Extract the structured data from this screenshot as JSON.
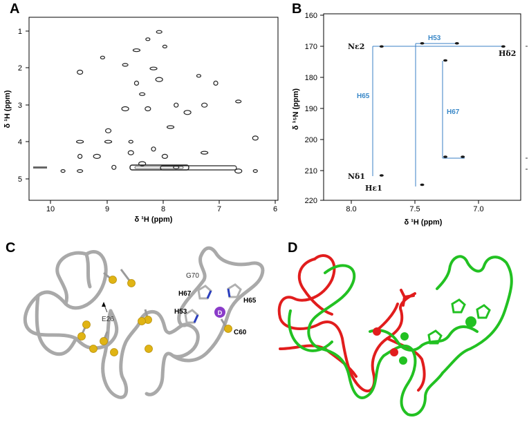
{
  "panels": {
    "a": {
      "letter": "A",
      "xlabel": "δ ¹H (ppm)",
      "ylabel": "δ ¹H (ppm)",
      "xticks": [
        "10",
        "9",
        "8",
        "7",
        "6"
      ],
      "yticks": [
        "1",
        "2",
        "3",
        "4",
        "5"
      ]
    },
    "b": {
      "letter": "B",
      "xlabel": "δ ¹H (ppm)",
      "ylabel": "δ ¹⁵N (ppm)",
      "xticks": [
        "8.0",
        "7.5",
        "7.0"
      ],
      "yticks": [
        "160",
        "170",
        "180",
        "190",
        "200",
        "210",
        "220"
      ],
      "labels": {
        "ne2": "Nε2",
        "nd1": "Nδ1",
        "hd2": "Hδ2",
        "he1": "Hε1",
        "h53": "H53",
        "h65": "H65",
        "h67": "H67"
      }
    },
    "c": {
      "letter": "C",
      "labels": {
        "g70": "G70",
        "h67": "H67",
        "h65": "H65",
        "h53": "H53",
        "e26": "E26",
        "c60": "C60",
        "metal": "D"
      }
    },
    "d": {
      "letter": "D"
    }
  },
  "chart_data": [
    {
      "type": "scatter",
      "title": "",
      "xlabel": "δ ¹H (ppm)",
      "ylabel": "δ ¹H (ppm)",
      "xlim": [
        10.4,
        6.0
      ],
      "ylim": [
        5.5,
        0.5
      ],
      "diagonal_band_note": "",
      "points": [
        [
          9.8,
          4.7
        ],
        [
          9.5,
          2.0
        ],
        [
          9.5,
          3.9
        ],
        [
          9.5,
          4.3
        ],
        [
          9.5,
          4.7
        ],
        [
          9.2,
          4.3
        ],
        [
          9.1,
          1.6
        ],
        [
          9.0,
          3.6
        ],
        [
          9.0,
          3.9
        ],
        [
          8.9,
          4.6
        ],
        [
          8.7,
          1.8
        ],
        [
          8.7,
          3.0
        ],
        [
          8.6,
          3.9
        ],
        [
          8.6,
          4.2
        ],
        [
          8.5,
          1.4
        ],
        [
          8.5,
          2.3
        ],
        [
          8.4,
          2.6
        ],
        [
          8.4,
          4.5
        ],
        [
          8.3,
          1.1
        ],
        [
          8.3,
          3.0
        ],
        [
          8.2,
          1.9
        ],
        [
          8.2,
          4.1
        ],
        [
          8.1,
          0.9
        ],
        [
          8.1,
          2.2
        ],
        [
          8.0,
          1.3
        ],
        [
          8.0,
          4.3
        ],
        [
          7.9,
          3.5
        ],
        [
          7.8,
          2.9
        ],
        [
          7.8,
          4.6
        ],
        [
          7.6,
          3.1
        ],
        [
          7.4,
          2.1
        ],
        [
          7.3,
          2.9
        ],
        [
          7.3,
          4.2
        ],
        [
          7.1,
          2.3
        ],
        [
          6.7,
          2.8
        ],
        [
          6.7,
          4.7
        ],
        [
          6.4,
          4.7
        ],
        [
          6.4,
          3.8
        ]
      ]
    },
    {
      "type": "scatter",
      "title": "",
      "xlabel": "δ ¹H (ppm)",
      "ylabel": "δ ¹⁵N (ppm)",
      "xlim": [
        8.3,
        6.6
      ],
      "ylim": [
        220,
        160
      ],
      "series": [
        {
          "name": "H53",
          "points": [
            [
              7.45,
              169.5
            ],
            [
              7.15,
              169.5
            ],
            [
              7.45,
              215
            ]
          ]
        },
        {
          "name": "H65",
          "points": [
            [
              7.8,
              170.5
            ],
            [
              6.75,
              170.5
            ],
            [
              7.8,
              212
            ]
          ]
        },
        {
          "name": "H67",
          "points": [
            [
              7.25,
              175
            ],
            [
              7.25,
              206
            ],
            [
              7.1,
              206
            ]
          ]
        }
      ]
    }
  ]
}
